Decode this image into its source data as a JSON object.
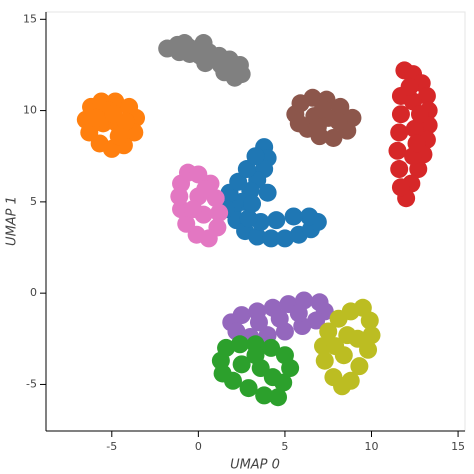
{
  "chart_data": {
    "type": "scatter",
    "x_label": "UMAP 0",
    "y_label": "UMAP 1",
    "xlim": [
      -8.8,
      15.4
    ],
    "ylim": [
      -7.55,
      15.4
    ],
    "xticks": [
      -5,
      0,
      5,
      10,
      15
    ],
    "yticks": [
      -5,
      0,
      5,
      10,
      15
    ],
    "grid": false,
    "series": [
      {
        "color": "#808080",
        "x": [
          -1.8,
          -1.2,
          -0.6,
          0,
          0.6,
          1.2,
          1.8,
          2.4,
          2.5,
          1.9,
          1.3,
          0.7,
          0.1,
          -0.5,
          -1.1,
          2.1,
          1.5,
          0.4,
          -0.8,
          0.3
        ],
        "values": [
          13.4,
          13.6,
          13.5,
          13.4,
          13.2,
          13.0,
          12.8,
          12.5,
          12.0,
          12.2,
          12.5,
          12.8,
          13.0,
          13.1,
          13.2,
          11.8,
          12.1,
          12.6,
          13.7,
          13.7
        ]
      },
      {
        "color": "#ff7f0e",
        "x": [
          -6.5,
          -6.2,
          -5.6,
          -4.8,
          -4.0,
          -3.6,
          -3.7,
          -4.3,
          -5.0,
          -5.7,
          -6.3,
          -5.5,
          -4.7,
          -4.2,
          -5.2,
          -4.6,
          -5.9,
          -4.9
        ],
        "values": [
          9.5,
          10.2,
          10.5,
          10.5,
          10.2,
          9.6,
          8.8,
          8.1,
          7.9,
          8.2,
          8.8,
          9.3,
          9.3,
          9.4,
          10.0,
          8.6,
          9.6,
          9.8
        ]
      },
      {
        "color": "#8c564b",
        "x": [
          5.6,
          5.9,
          6.6,
          7.4,
          8.2,
          8.9,
          8.6,
          7.8,
          7.0,
          6.3,
          5.8,
          6.7,
          7.5,
          8.1,
          7.2,
          6.9
        ],
        "values": [
          9.8,
          10.4,
          10.7,
          10.6,
          10.2,
          9.6,
          8.9,
          8.5,
          8.6,
          9.0,
          9.3,
          9.7,
          9.6,
          9.4,
          10.1,
          9.1
        ]
      },
      {
        "color": "#d62728",
        "x": [
          11.9,
          12.4,
          12.9,
          13.2,
          13.3,
          13.3,
          13.2,
          13.0,
          12.7,
          12.3,
          12.0,
          11.7,
          11.6,
          11.5,
          11.6,
          11.7,
          11.7,
          12.4,
          12.5,
          12.4,
          12.2,
          12.8,
          12.6
        ],
        "values": [
          12.2,
          12.0,
          11.5,
          10.8,
          10.0,
          9.2,
          8.4,
          7.6,
          6.8,
          6.0,
          5.2,
          5.8,
          6.8,
          7.8,
          8.8,
          9.8,
          10.8,
          10.5,
          9.0,
          7.5,
          11.3,
          9.8,
          8.2
        ]
      },
      {
        "color": "#1f77b4",
        "x": [
          3.8,
          4.0,
          3.8,
          3.4,
          3.0,
          2.5,
          2.0,
          1.8,
          2.3,
          2.8,
          3.3,
          2.2,
          2.7,
          3.4,
          4.2,
          5.0,
          5.8,
          6.5,
          6.9,
          6.4,
          5.5,
          4.5,
          3.6,
          2.9,
          4.0,
          3.1,
          1.6
        ],
        "values": [
          8.0,
          7.4,
          6.8,
          6.2,
          5.6,
          5.0,
          4.6,
          5.5,
          6.1,
          6.8,
          7.5,
          4.0,
          3.4,
          3.1,
          3.0,
          3.0,
          3.2,
          3.5,
          3.9,
          4.2,
          4.2,
          4.0,
          3.9,
          4.1,
          5.5,
          4.9,
          4.6
        ]
      },
      {
        "color": "#e377c2",
        "x": [
          -1.0,
          -0.6,
          0,
          0.7,
          1.0,
          1.2,
          1.1,
          0.6,
          -0.1,
          -0.7,
          -1.0,
          -1.1,
          0,
          0.3,
          -0.3,
          0.4
        ],
        "values": [
          6.0,
          6.6,
          6.5,
          6.0,
          5.2,
          4.4,
          3.6,
          3.0,
          3.2,
          3.8,
          4.6,
          5.3,
          5.3,
          4.3,
          4.6,
          5.7
        ]
      },
      {
        "color": "#9467bd",
        "x": [
          1.9,
          2.5,
          3.4,
          4.3,
          5.2,
          6.1,
          7.0,
          7.3,
          6.8,
          6.0,
          5.0,
          4.0,
          3.0,
          2.2,
          3.5,
          4.7,
          5.8
        ],
        "values": [
          -1.6,
          -1.2,
          -1.0,
          -0.8,
          -0.6,
          -0.4,
          -0.5,
          -1.0,
          -1.5,
          -1.8,
          -2.1,
          -2.3,
          -2.4,
          -2.1,
          -1.6,
          -1.4,
          -1.1
        ]
      },
      {
        "color": "#bcbd22",
        "x": [
          9.5,
          9.9,
          10.0,
          9.8,
          9.3,
          8.8,
          8.3,
          7.8,
          7.3,
          7.2,
          7.5,
          8.1,
          8.8,
          8.6,
          8.4,
          9.2,
          7.9
        ],
        "values": [
          -0.8,
          -1.5,
          -2.3,
          -3.1,
          -4.0,
          -4.8,
          -5.1,
          -4.6,
          -3.7,
          -2.9,
          -2.1,
          -1.4,
          -1.0,
          -2.3,
          -3.4,
          -2.5,
          -2.9
        ]
      },
      {
        "color": "#2ca02c",
        "x": [
          1.3,
          1.6,
          2.4,
          3.3,
          4.2,
          5.0,
          5.3,
          4.9,
          4.6,
          3.8,
          2.9,
          2.0,
          1.4,
          2.5,
          3.6,
          4.3,
          3.3
        ],
        "values": [
          -3.7,
          -3.0,
          -2.8,
          -2.8,
          -3.0,
          -3.4,
          -4.1,
          -4.9,
          -5.7,
          -5.6,
          -5.2,
          -4.8,
          -4.4,
          -3.9,
          -4.1,
          -4.6,
          -3.4
        ]
      }
    ]
  }
}
